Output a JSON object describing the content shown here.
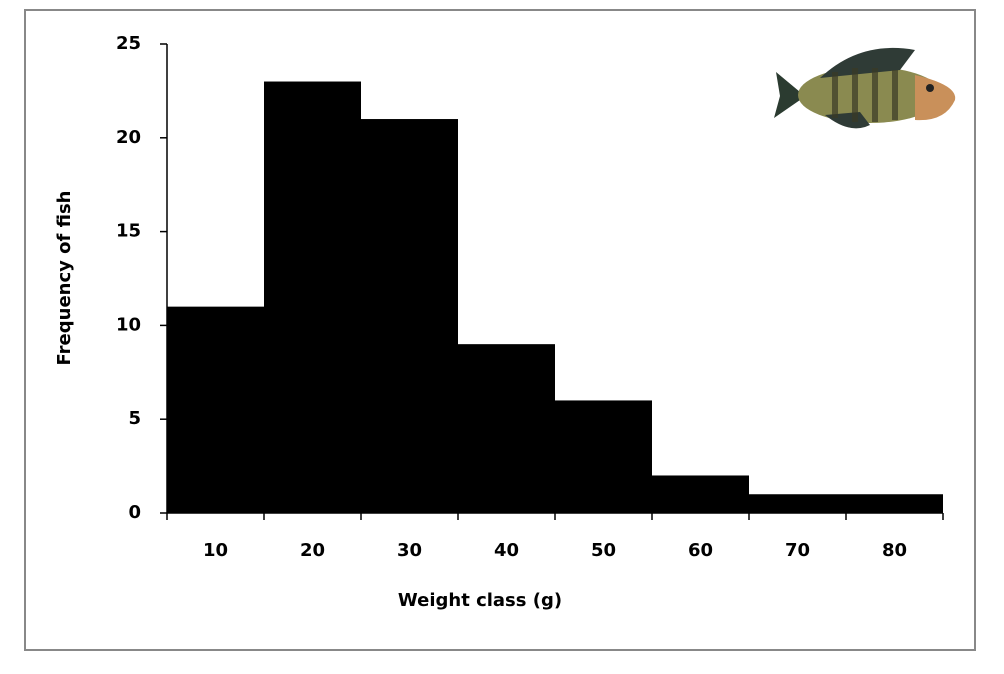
{
  "chart_data": {
    "type": "bar",
    "x_label": "Weight class (g)",
    "y_label": "Frequency of fish",
    "categories": [
      "10",
      "20",
      "30",
      "40",
      "50",
      "60",
      "70",
      "80"
    ],
    "values": [
      11,
      23,
      21,
      9,
      6,
      2,
      1,
      1
    ],
    "color": "#000000",
    "ylim": [
      0,
      25
    ],
    "yticks": [
      0,
      5,
      10,
      15,
      20,
      25
    ],
    "grid": false
  }
}
